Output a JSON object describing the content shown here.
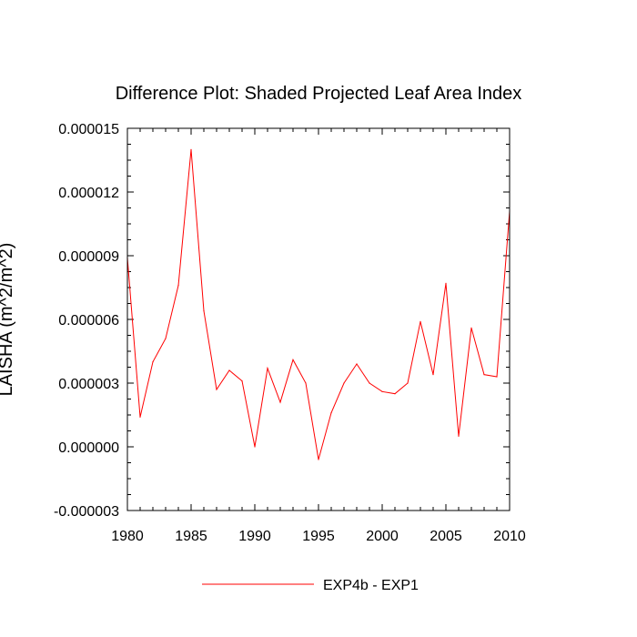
{
  "chart_data": {
    "type": "line",
    "title": "Difference Plot: Shaded Projected Leaf Area Index",
    "xlabel": "",
    "ylabel": "LAISHA  (m^2/m^2)",
    "xlim": [
      1980,
      2010
    ],
    "ylim": [
      -3e-06,
      1.5e-05
    ],
    "x_ticks": [
      1980,
      1985,
      1990,
      1995,
      2000,
      2005,
      2010
    ],
    "x_tick_labels": [
      "1980",
      "1985",
      "1990",
      "1995",
      "2000",
      "2005",
      "2010"
    ],
    "y_ticks": [
      -3e-06,
      0.0,
      3e-06,
      6e-06,
      9e-06,
      1.2e-05,
      1.5e-05
    ],
    "y_tick_labels": [
      "-0.000003",
      "0.000000",
      "0.000003",
      "0.000006",
      "0.000009",
      "0.000012",
      "0.000015"
    ],
    "grid": false,
    "legend_position": "bottom-center",
    "series": [
      {
        "name": "EXP4b - EXP1",
        "color": "#ff0000",
        "x": [
          1980,
          1981,
          1982,
          1983,
          1984,
          1985,
          1986,
          1987,
          1988,
          1989,
          1990,
          1991,
          1992,
          1993,
          1994,
          1995,
          1996,
          1997,
          1998,
          1999,
          2000,
          2001,
          2002,
          2003,
          2004,
          2005,
          2006,
          2007,
          2008,
          2009,
          2010
        ],
        "y": [
          8.9e-06,
          1.4e-06,
          4e-06,
          5.1e-06,
          7.6e-06,
          1.4e-05,
          6.4e-06,
          2.7e-06,
          3.6e-06,
          3.1e-06,
          0.0,
          3.7e-06,
          2.1e-06,
          4.1e-06,
          3e-06,
          -6e-07,
          1.6e-06,
          3e-06,
          3.9e-06,
          3e-06,
          2.6e-06,
          2.5e-06,
          3e-06,
          5.9e-06,
          3.4e-06,
          7.7e-06,
          5e-07,
          5.6e-06,
          3.4e-06,
          3.3e-06,
          1.11e-05
        ]
      }
    ]
  }
}
